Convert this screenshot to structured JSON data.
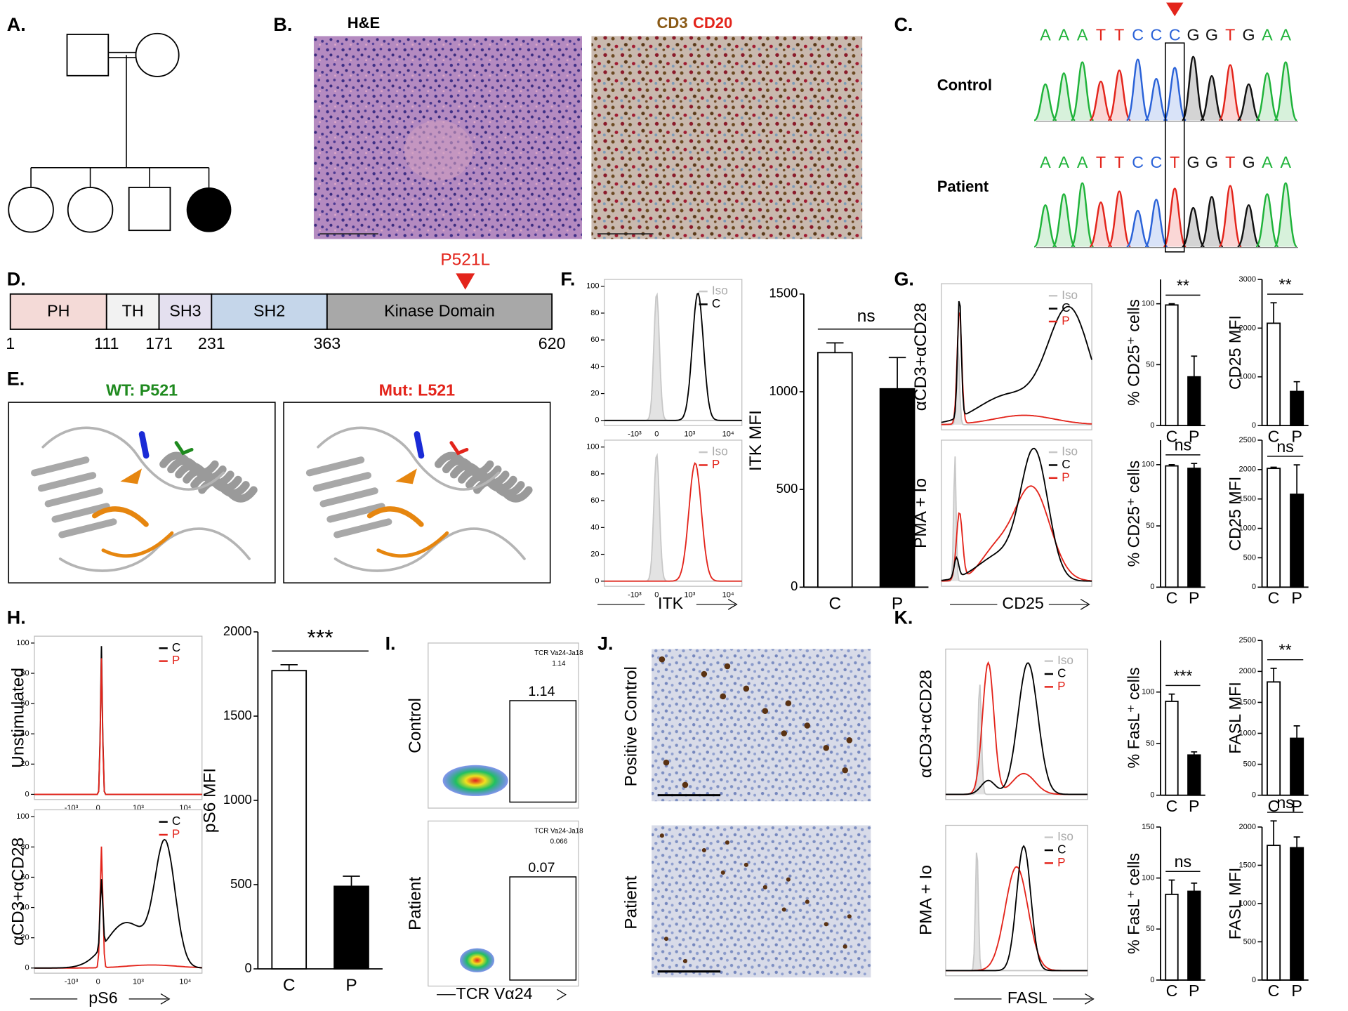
{
  "panel_letters": [
    "A.",
    "B.",
    "C.",
    "D.",
    "E.",
    "F.",
    "G.",
    "H.",
    "I.",
    "J.",
    "K."
  ],
  "B": {
    "left_title": "H&E",
    "right_title_1": "CD3",
    "right_title_2": "CD20"
  },
  "C": {
    "row_labels": [
      "Control",
      "Patient"
    ],
    "control_seq": [
      "A",
      "A",
      "A",
      "T",
      "T",
      "C",
      "C",
      "C",
      "G",
      "G",
      "T",
      "G",
      "A",
      "A"
    ],
    "patient_seq": [
      "A",
      "A",
      "A",
      "T",
      "T",
      "C",
      "C",
      "T",
      "G",
      "G",
      "T",
      "G",
      "A",
      "A"
    ]
  },
  "D": {
    "mutation": "P521L",
    "domains": [
      {
        "label": "PH",
        "color": "#f4dad7"
      },
      {
        "label": "TH",
        "color": "#f2f2f2"
      },
      {
        "label": "SH3",
        "color": "#e4e0ef"
      },
      {
        "label": "SH2",
        "color": "#c5d6ea"
      },
      {
        "label": "Kinase Domain",
        "color": "#a8a8a8"
      }
    ],
    "positions": [
      1,
      111,
      171,
      231,
      363,
      620
    ]
  },
  "E": {
    "wt_title": "WT: P521",
    "mut_title": "Mut: L521"
  },
  "flow": {
    "xticks": [
      "-10³",
      "0",
      "10³",
      "10⁴"
    ],
    "yticks": [
      0,
      20,
      40,
      60,
      80,
      100
    ],
    "series": [
      {
        "name": "Iso",
        "color": "#c8c8c8"
      },
      {
        "name": "C",
        "color": "#000000"
      },
      {
        "name": "P",
        "color": "#e3241b"
      }
    ]
  },
  "F": {
    "xlabel": "ITK"
  },
  "G": {
    "row_labels": [
      "αCD3+αCD28",
      "PMA + Io"
    ],
    "xlabel": "CD25"
  },
  "H": {
    "row_labels": [
      "Unstimulated",
      "αCD3+αCD28"
    ],
    "xlabel": "pS6"
  },
  "I": {
    "row_labels": [
      "Control",
      "Patient"
    ],
    "gate_title": "TCR Va24-Ja18",
    "gate_small": [
      1.14,
      0.066
    ],
    "gate_big": [
      1.14,
      0.07
    ],
    "xlabel": "TCR Vα24"
  },
  "J": {
    "row_labels": [
      "Positive Control",
      "Patient"
    ]
  },
  "K": {
    "row_labels": [
      "αCD3+αCD28",
      "PMA + Io"
    ],
    "xlabel": "FASL"
  },
  "chart_data": [
    {
      "type": "bar",
      "ylabel": "ITK MFI",
      "categories": [
        "C",
        "P"
      ],
      "values": [
        1200,
        1015
      ],
      "errors": [
        50,
        160
      ],
      "colors": [
        "#ffffff",
        "#000000"
      ],
      "ylim": [
        0,
        1500
      ],
      "yticks": [
        0,
        500,
        1000,
        1500
      ],
      "annotation": "ns"
    },
    {
      "type": "bar",
      "ylabel": "% CD25⁺ cells",
      "categories": [
        "C",
        "P"
      ],
      "values": [
        99,
        40
      ],
      "errors": [
        1,
        17
      ],
      "colors": [
        "#ffffff",
        "#000000"
      ],
      "ylim": [
        0,
        120
      ],
      "yticks": [
        0,
        50,
        100
      ],
      "annotation": "**"
    },
    {
      "type": "bar",
      "ylabel": "CD25 MFI",
      "categories": [
        "C",
        "P"
      ],
      "values": [
        2100,
        700
      ],
      "errors": [
        420,
        200
      ],
      "colors": [
        "#ffffff",
        "#000000"
      ],
      "ylim": [
        0,
        3000
      ],
      "yticks": [
        0,
        1000,
        2000,
        3000
      ],
      "annotation": "**"
    },
    {
      "type": "bar",
      "ylabel": "% CD25⁺ cells",
      "categories": [
        "C",
        "P"
      ],
      "values": [
        99,
        97
      ],
      "errors": [
        1,
        4
      ],
      "colors": [
        "#ffffff",
        "#000000"
      ],
      "ylim": [
        0,
        120
      ],
      "yticks": [
        0,
        50,
        100
      ],
      "annotation": "ns"
    },
    {
      "type": "bar",
      "ylabel": "CD25 MFI",
      "categories": [
        "C",
        "P"
      ],
      "values": [
        2020,
        1580
      ],
      "errors": [
        20,
        500
      ],
      "colors": [
        "#ffffff",
        "#000000"
      ],
      "ylim": [
        0,
        2500
      ],
      "yticks": [
        0,
        500,
        1000,
        1500,
        2000,
        2500
      ],
      "annotation": "ns"
    },
    {
      "type": "bar",
      "ylabel": "pS6 MFI",
      "categories": [
        "C",
        "P"
      ],
      "values": [
        1770,
        490
      ],
      "errors": [
        35,
        60
      ],
      "colors": [
        "#ffffff",
        "#000000"
      ],
      "ylim": [
        0,
        2000
      ],
      "yticks": [
        0,
        500,
        1000,
        1500,
        2000
      ],
      "annotation": "***"
    },
    {
      "type": "bar",
      "ylabel": "% FasL⁺ cells",
      "categories": [
        "C",
        "P"
      ],
      "values": [
        91,
        39
      ],
      "errors": [
        7,
        3
      ],
      "colors": [
        "#ffffff",
        "#000000"
      ],
      "ylim": [
        0,
        150
      ],
      "yticks": [
        0,
        50,
        100
      ],
      "annotation": "***"
    },
    {
      "type": "bar",
      "ylabel": "FASL MFI",
      "categories": [
        "C",
        "P"
      ],
      "values": [
        1830,
        920
      ],
      "errors": [
        220,
        200
      ],
      "colors": [
        "#ffffff",
        "#000000"
      ],
      "ylim": [
        0,
        2500
      ],
      "yticks": [
        0,
        500,
        1000,
        1500,
        2000,
        2500
      ],
      "annotation": "**"
    },
    {
      "type": "bar",
      "ylabel": "% FasL⁺ cells",
      "categories": [
        "C",
        "P"
      ],
      "values": [
        84,
        87
      ],
      "errors": [
        14,
        8
      ],
      "colors": [
        "#ffffff",
        "#000000"
      ],
      "ylim": [
        0,
        150
      ],
      "yticks": [
        0,
        50,
        100,
        150
      ],
      "annotation": "ns"
    },
    {
      "type": "bar",
      "ylabel": "FASL MFI",
      "categories": [
        "C",
        "P"
      ],
      "values": [
        1760,
        1730
      ],
      "errors": [
        320,
        140
      ],
      "colors": [
        "#ffffff",
        "#000000"
      ],
      "ylim": [
        0,
        2000
      ],
      "yticks": [
        0,
        500,
        1000,
        1500,
        2000
      ],
      "annotation": "ns"
    }
  ]
}
